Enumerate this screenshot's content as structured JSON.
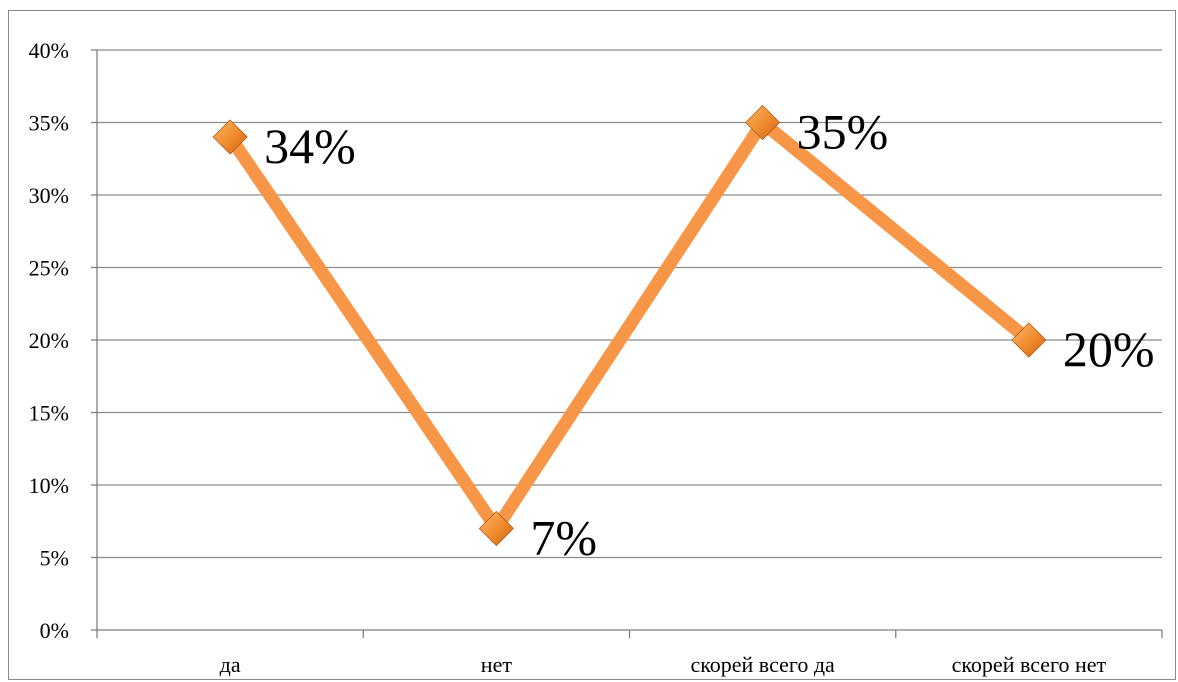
{
  "chart_data": {
    "type": "line",
    "title": "",
    "xlabel": "",
    "ylabel": "",
    "categories": [
      "да",
      "нет",
      "скорей всего да",
      "скорей всего нет"
    ],
    "series": [
      {
        "values": [
          34,
          7,
          35,
          20
        ],
        "data_labels": [
          "34%",
          "7%",
          "35%",
          "20%"
        ],
        "color": "#f79646"
      }
    ],
    "ylim": [
      0,
      40
    ],
    "y_ticks": [
      0,
      5,
      10,
      15,
      20,
      25,
      30,
      35,
      40
    ],
    "y_tick_labels": [
      "0%",
      "5%",
      "10%",
      "15%",
      "20%",
      "25%",
      "30%",
      "35%",
      "40%"
    ],
    "grid": true,
    "legend": "none",
    "marker": "diamond",
    "colors": {
      "line": "#f79646",
      "marker": "#f08a2c",
      "grid": "#8c8c8c",
      "axis": "#7f7f7f"
    }
  }
}
